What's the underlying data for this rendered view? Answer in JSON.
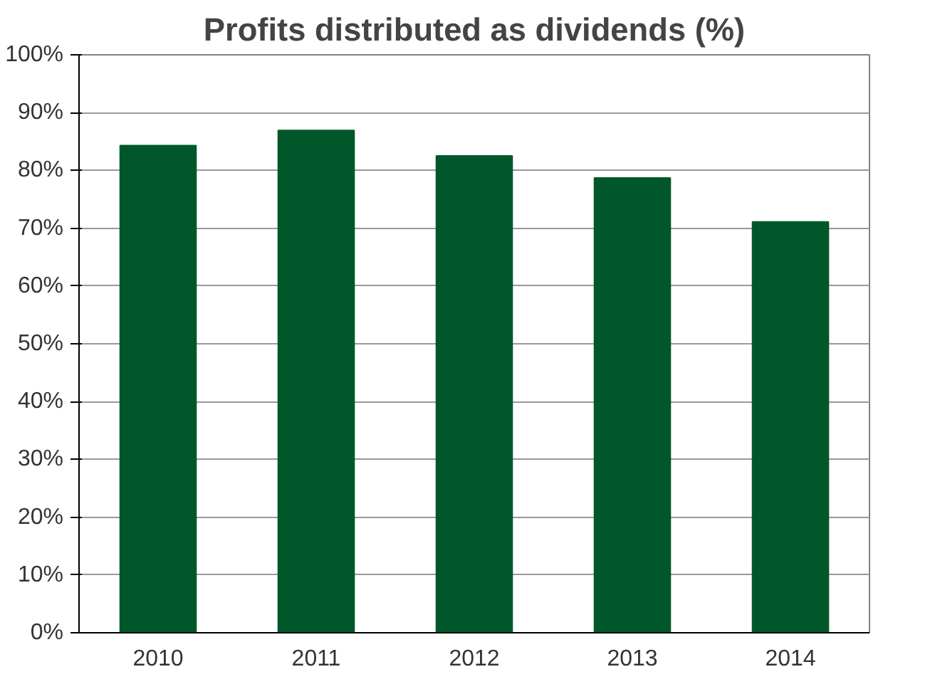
{
  "chart_data": {
    "type": "bar",
    "title": "Profits distributed as dividends (%)",
    "categories": [
      "2010",
      "2011",
      "2012",
      "2013",
      "2014"
    ],
    "values": [
      84.3,
      86.9,
      82.5,
      78.7,
      71.1
    ],
    "color": "#00582a",
    "ylim": [
      0,
      100
    ],
    "yticks": [
      {
        "value": 0,
        "label": "0%"
      },
      {
        "value": 10,
        "label": "10%"
      },
      {
        "value": 20,
        "label": "20%"
      },
      {
        "value": 30,
        "label": "30%"
      },
      {
        "value": 40,
        "label": "40%"
      },
      {
        "value": 50,
        "label": "50%"
      },
      {
        "value": 60,
        "label": "60%"
      },
      {
        "value": 70,
        "label": "70%"
      },
      {
        "value": 80,
        "label": "80%"
      },
      {
        "value": 90,
        "label": "90%"
      },
      {
        "value": 100,
        "label": "100%"
      }
    ],
    "grid": "y"
  }
}
